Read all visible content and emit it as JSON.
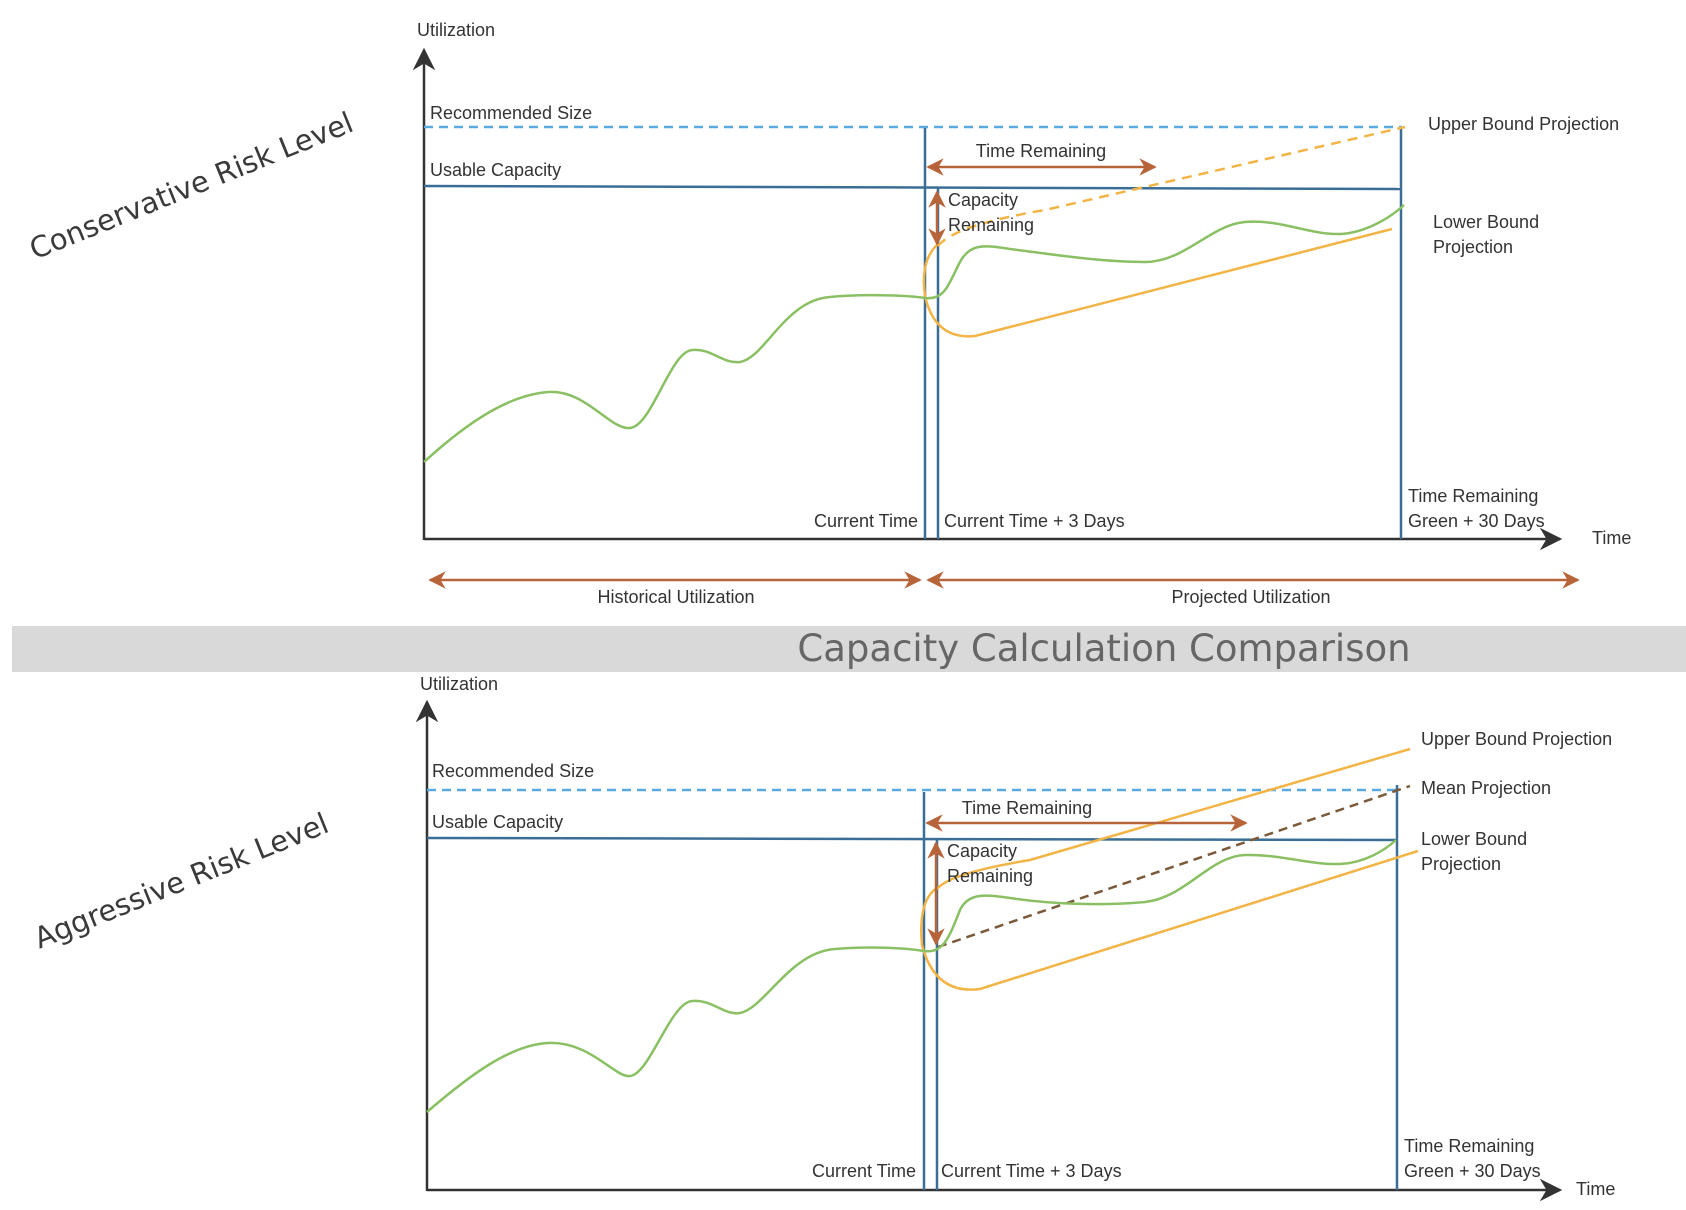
{
  "banner": {
    "title": "Capacity Calculation Comparison",
    "color": "#d9d9d9"
  },
  "colors": {
    "axis": "#333333",
    "capacity_line": "#3b6e97",
    "recommended_line": "#5aaae0",
    "utilization": "#8ac063",
    "projection": "#f3b446",
    "mean_projection": "#7a5a3a",
    "annotation_arrow": "#b8643a"
  },
  "top": {
    "risk_label": "Conservative Risk Level",
    "y_axis_label": "Utilization",
    "x_axis_label": "Time",
    "recommended_size": "Recommended Size",
    "usable_capacity": "Usable Capacity",
    "time_remaining": "Time Remaining",
    "capacity_remaining": [
      "Capacity",
      "Remaining"
    ],
    "upper_bound": "Upper Bound Projection",
    "lower_bound": [
      "Lower Bound",
      "Projection"
    ],
    "current_time": "Current Time",
    "current_time_3": "Current Time + 3 Days",
    "time_remaining_green": [
      "Time Remaining",
      "Green + 30 Days"
    ],
    "historical": "Historical Utilization",
    "projected": "Projected Utilization"
  },
  "bottom": {
    "risk_label": "Aggressive Risk Level",
    "y_axis_label": "Utilization",
    "x_axis_label": "Time",
    "recommended_size": "Recommended Size",
    "usable_capacity": "Usable Capacity",
    "time_remaining": "Time Remaining",
    "capacity_remaining": [
      "Capacity",
      "Remaining"
    ],
    "upper_bound": "Upper Bound Projection",
    "mean_projection": "Mean Projection",
    "lower_bound": [
      "Lower Bound",
      "Projection"
    ],
    "current_time": "Current Time",
    "current_time_3": "Current Time + 3 Days",
    "time_remaining_green": [
      "Time Remaining",
      "Green + 30 Days"
    ]
  }
}
